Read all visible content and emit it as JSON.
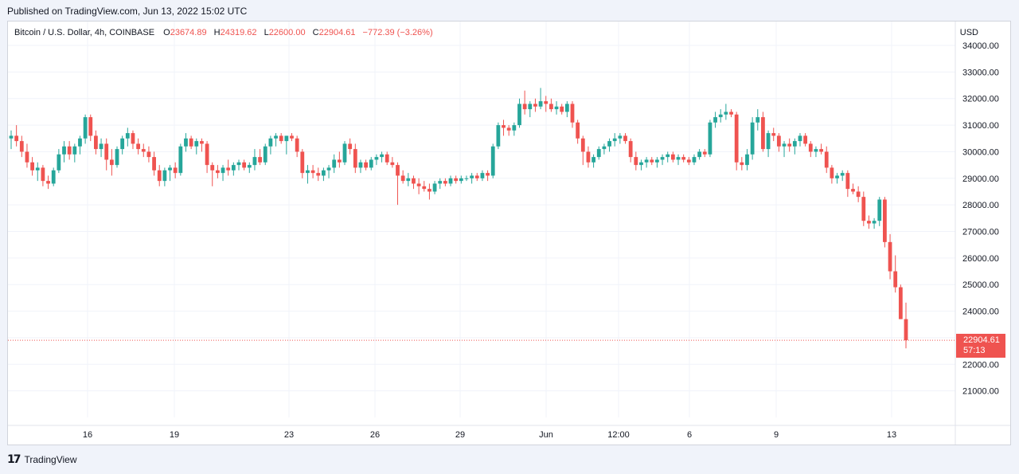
{
  "header": {
    "published": "Published on TradingView.com, Jun 13, 2022 15:02 UTC"
  },
  "legend": {
    "symbol": "Bitcoin / U.S. Dollar, 4h, COINBASE",
    "o_label": "O",
    "o_value": "23674.89",
    "h_label": "H",
    "h_value": "24319.62",
    "l_label": "L",
    "l_value": "22600.00",
    "c_label": "C",
    "c_value": "22904.61",
    "change": "−772.39 (−3.26%)"
  },
  "currency": "USD",
  "last_price": {
    "price": "22904.61",
    "countdown": "57:13"
  },
  "footer": {
    "brand": "TradingView",
    "logo_icon": "tradingview-logo-icon"
  },
  "colors": {
    "up": "#26a69a",
    "down": "#ef5350",
    "grid": "#f0f3fa",
    "text": "#131722"
  },
  "chart_data": {
    "type": "candlestick",
    "symbol": "BTCUSD",
    "interval": "4h",
    "x_ticks": [
      "16",
      "19",
      "23",
      "26",
      "29",
      "Jun",
      "12:00",
      "6",
      "9",
      "13"
    ],
    "y_ticks": [
      "21000.00",
      "22000.00",
      "23000.00",
      "24000.00",
      "25000.00",
      "26000.00",
      "27000.00",
      "28000.00",
      "29000.00",
      "30000.00",
      "31000.00",
      "32000.00",
      "33000.00",
      "34000.00"
    ],
    "ylim": [
      20000,
      34900
    ],
    "grid": true,
    "last_close": 22904.61,
    "candles": [
      [
        30500,
        30800,
        30100,
        30600
      ],
      [
        30600,
        31000,
        30200,
        30400
      ],
      [
        30400,
        30600,
        29800,
        30000
      ],
      [
        30000,
        30300,
        29400,
        29600
      ],
      [
        29600,
        29800,
        29100,
        29300
      ],
      [
        29300,
        29600,
        28900,
        29400
      ],
      [
        29400,
        29500,
        28700,
        28900
      ],
      [
        28900,
        29100,
        28600,
        28800
      ],
      [
        28800,
        29400,
        28700,
        29300
      ],
      [
        29300,
        30100,
        29200,
        29900
      ],
      [
        29900,
        30400,
        29600,
        30200
      ],
      [
        30200,
        30400,
        29700,
        29900
      ],
      [
        29900,
        30300,
        29600,
        30200
      ],
      [
        30200,
        30600,
        29900,
        30500
      ],
      [
        30500,
        31400,
        30300,
        31300
      ],
      [
        31300,
        31400,
        30400,
        30600
      ],
      [
        30600,
        30800,
        29900,
        30100
      ],
      [
        30100,
        30500,
        29800,
        30300
      ],
      [
        30300,
        30500,
        29300,
        29700
      ],
      [
        29700,
        30100,
        29100,
        29500
      ],
      [
        29500,
        30200,
        29400,
        30100
      ],
      [
        30100,
        30600,
        29900,
        30500
      ],
      [
        30500,
        30900,
        30200,
        30700
      ],
      [
        30700,
        30800,
        30100,
        30300
      ],
      [
        30300,
        30500,
        29900,
        30100
      ],
      [
        30100,
        30300,
        29800,
        30000
      ],
      [
        30000,
        30200,
        29600,
        29800
      ],
      [
        29800,
        30000,
        29100,
        29300
      ],
      [
        29300,
        29500,
        28700,
        28900
      ],
      [
        28900,
        29400,
        28700,
        29300
      ],
      [
        29300,
        29500,
        28900,
        29400
      ],
      [
        29400,
        29600,
        29000,
        29200
      ],
      [
        29200,
        30300,
        29100,
        30200
      ],
      [
        30200,
        30700,
        30000,
        30500
      ],
      [
        30500,
        30600,
        30100,
        30200
      ],
      [
        30200,
        30500,
        29900,
        30400
      ],
      [
        30400,
        30500,
        30000,
        30300
      ],
      [
        30300,
        30400,
        29200,
        29500
      ],
      [
        29500,
        29600,
        28700,
        29300
      ],
      [
        29300,
        29500,
        29000,
        29200
      ],
      [
        29200,
        29500,
        28900,
        29400
      ],
      [
        29400,
        29700,
        29100,
        29300
      ],
      [
        29300,
        29600,
        29100,
        29500
      ],
      [
        29500,
        29700,
        29300,
        29600
      ],
      [
        29600,
        29700,
        29300,
        29400
      ],
      [
        29400,
        29600,
        29200,
        29500
      ],
      [
        29500,
        30100,
        29300,
        29800
      ],
      [
        29800,
        30100,
        29500,
        29600
      ],
      [
        29600,
        30300,
        29500,
        30200
      ],
      [
        30200,
        30600,
        29900,
        30500
      ],
      [
        30500,
        30700,
        30200,
        30600
      ],
      [
        30600,
        30700,
        30300,
        30400
      ],
      [
        30400,
        30600,
        29900,
        30600
      ],
      [
        30600,
        30700,
        30400,
        30500
      ],
      [
        30500,
        30600,
        29800,
        30000
      ],
      [
        30000,
        30100,
        29000,
        29200
      ],
      [
        29200,
        29500,
        28800,
        29300
      ],
      [
        29300,
        29500,
        29000,
        29200
      ],
      [
        29200,
        29400,
        28900,
        29100
      ],
      [
        29100,
        29400,
        28900,
        29300
      ],
      [
        29300,
        29500,
        29000,
        29400
      ],
      [
        29400,
        29900,
        29200,
        29700
      ],
      [
        29700,
        30000,
        29400,
        29600
      ],
      [
        29600,
        30400,
        29500,
        30300
      ],
      [
        30300,
        30500,
        29900,
        30100
      ],
      [
        30100,
        30300,
        29200,
        29400
      ],
      [
        29400,
        29700,
        29200,
        29600
      ],
      [
        29600,
        29700,
        29300,
        29400
      ],
      [
        29400,
        29800,
        29300,
        29700
      ],
      [
        29700,
        29900,
        29500,
        29800
      ],
      [
        29800,
        30000,
        29600,
        29900
      ],
      [
        29900,
        30000,
        29500,
        29600
      ],
      [
        29600,
        29800,
        29400,
        29500
      ],
      [
        29500,
        29600,
        28000,
        29100
      ],
      [
        29100,
        29300,
        28800,
        28900
      ],
      [
        28900,
        29200,
        28700,
        29000
      ],
      [
        29000,
        29100,
        28600,
        28800
      ],
      [
        28800,
        29000,
        28400,
        28700
      ],
      [
        28700,
        28900,
        28500,
        28600
      ],
      [
        28600,
        28800,
        28200,
        28500
      ],
      [
        28500,
        28900,
        28400,
        28800
      ],
      [
        28800,
        29000,
        28600,
        28900
      ],
      [
        28900,
        29000,
        28700,
        28800
      ],
      [
        28800,
        29100,
        28700,
        29000
      ],
      [
        29000,
        29100,
        28800,
        28900
      ],
      [
        28900,
        29100,
        28800,
        29000
      ],
      [
        29000,
        29100,
        28900,
        29000
      ],
      [
        29000,
        29200,
        28800,
        29100
      ],
      [
        29100,
        29200,
        28900,
        29000
      ],
      [
        29000,
        29300,
        28900,
        29200
      ],
      [
        29200,
        29300,
        28900,
        29100
      ],
      [
        29100,
        30300,
        29000,
        30200
      ],
      [
        30200,
        31100,
        30100,
        31000
      ],
      [
        31000,
        31200,
        30600,
        30900
      ],
      [
        30900,
        31000,
        30600,
        30800
      ],
      [
        30800,
        31100,
        30600,
        31000
      ],
      [
        31000,
        32000,
        30900,
        31800
      ],
      [
        31800,
        32300,
        31400,
        31600
      ],
      [
        31600,
        31900,
        31300,
        31800
      ],
      [
        31800,
        32000,
        31500,
        31700
      ],
      [
        31700,
        32400,
        31600,
        31900
      ],
      [
        31900,
        32100,
        31500,
        31800
      ],
      [
        31800,
        32000,
        31500,
        31600
      ],
      [
        31600,
        31900,
        31400,
        31700
      ],
      [
        31700,
        31800,
        31400,
        31500
      ],
      [
        31500,
        31900,
        31300,
        31800
      ],
      [
        31800,
        31900,
        30900,
        31100
      ],
      [
        31100,
        31200,
        30300,
        30500
      ],
      [
        30500,
        30600,
        29500,
        30000
      ],
      [
        30000,
        30200,
        29400,
        29600
      ],
      [
        29600,
        29900,
        29400,
        29800
      ],
      [
        29800,
        30200,
        29700,
        30100
      ],
      [
        30100,
        30300,
        29900,
        30200
      ],
      [
        30200,
        30500,
        30000,
        30400
      ],
      [
        30400,
        30700,
        30200,
        30500
      ],
      [
        30500,
        30700,
        30300,
        30600
      ],
      [
        30600,
        30700,
        30300,
        30400
      ],
      [
        30400,
        30500,
        29600,
        29800
      ],
      [
        29800,
        30000,
        29300,
        29500
      ],
      [
        29500,
        29700,
        29300,
        29600
      ],
      [
        29600,
        29800,
        29400,
        29700
      ],
      [
        29700,
        29800,
        29500,
        29600
      ],
      [
        29600,
        29800,
        29400,
        29700
      ],
      [
        29700,
        29900,
        29500,
        29800
      ],
      [
        29800,
        30000,
        29600,
        29900
      ],
      [
        29900,
        30000,
        29600,
        29700
      ],
      [
        29700,
        29900,
        29500,
        29800
      ],
      [
        29800,
        29900,
        29600,
        29700
      ],
      [
        29700,
        29800,
        29500,
        29600
      ],
      [
        29600,
        29900,
        29500,
        29800
      ],
      [
        29800,
        30100,
        29700,
        30000
      ],
      [
        30000,
        30100,
        29800,
        29900
      ],
      [
        29900,
        31200,
        29800,
        31100
      ],
      [
        31100,
        31500,
        30900,
        31300
      ],
      [
        31300,
        31600,
        31100,
        31400
      ],
      [
        31400,
        31800,
        31200,
        31500
      ],
      [
        31500,
        31600,
        31300,
        31400
      ],
      [
        31400,
        31500,
        29300,
        29600
      ],
      [
        29600,
        29800,
        29300,
        29500
      ],
      [
        29500,
        30100,
        29300,
        29900
      ],
      [
        29900,
        31300,
        29700,
        31100
      ],
      [
        31100,
        31600,
        30800,
        31300
      ],
      [
        31300,
        31500,
        30000,
        30100
      ],
      [
        30100,
        30800,
        29800,
        30700
      ],
      [
        30700,
        30900,
        30400,
        30600
      ],
      [
        30600,
        30700,
        30000,
        30200
      ],
      [
        30200,
        30400,
        29800,
        30300
      ],
      [
        30300,
        30500,
        30000,
        30200
      ],
      [
        30200,
        30500,
        29900,
        30400
      ],
      [
        30400,
        30700,
        30200,
        30600
      ],
      [
        30600,
        30700,
        30200,
        30300
      ],
      [
        30300,
        30400,
        29800,
        30000
      ],
      [
        30000,
        30200,
        29800,
        30100
      ],
      [
        30100,
        30300,
        29900,
        30000
      ],
      [
        30000,
        30200,
        29200,
        29400
      ],
      [
        29400,
        29500,
        28800,
        29000
      ],
      [
        29000,
        29200,
        28800,
        29100
      ],
      [
        29100,
        29300,
        28900,
        29200
      ],
      [
        29200,
        29300,
        28300,
        28600
      ],
      [
        28600,
        28800,
        28400,
        28500
      ],
      [
        28500,
        28700,
        28100,
        28300
      ],
      [
        28300,
        28500,
        27200,
        27400
      ],
      [
        27400,
        27600,
        27100,
        27300
      ],
      [
        27300,
        27500,
        27100,
        27400
      ],
      [
        27400,
        28300,
        27200,
        28200
      ],
      [
        28200,
        28300,
        26400,
        26600
      ],
      [
        26600,
        26900,
        25200,
        25500
      ],
      [
        25500,
        26100,
        24700,
        24900
      ],
      [
        24900,
        25000,
        23700,
        23700
      ],
      [
        23700,
        24320,
        22600,
        22905
      ]
    ]
  }
}
